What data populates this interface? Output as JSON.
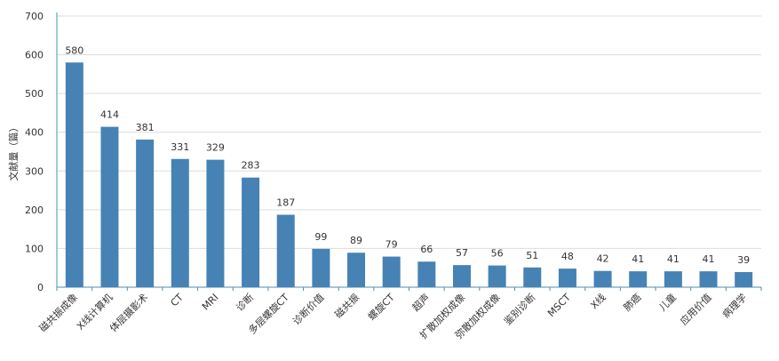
{
  "chart_data": {
    "type": "bar",
    "ylabel": "文献量（篇）",
    "ylim": [
      0,
      700
    ],
    "yticks": [
      0,
      100,
      200,
      300,
      400,
      500,
      600,
      700
    ],
    "grid": true,
    "categories": [
      "磁共振成像",
      "X线计算机",
      "体层摄影术",
      "CT",
      "MRI",
      "诊断",
      "多层螺旋CT",
      "诊断价值",
      "磁共振",
      "螺旋CT",
      "超声",
      "扩散加权成像",
      "弥散加权成像",
      "鉴别诊断",
      "MSCT",
      "X线",
      "肺癌",
      "儿童",
      "应用价值",
      "病理学"
    ],
    "values": [
      580,
      414,
      381,
      331,
      329,
      283,
      187,
      99,
      89,
      79,
      66,
      57,
      56,
      51,
      48,
      42,
      41,
      41,
      41,
      39
    ],
    "bar_color": "#4682b4",
    "grid_color": "#dddddd",
    "axis_color": "#4a8fb5"
  }
}
